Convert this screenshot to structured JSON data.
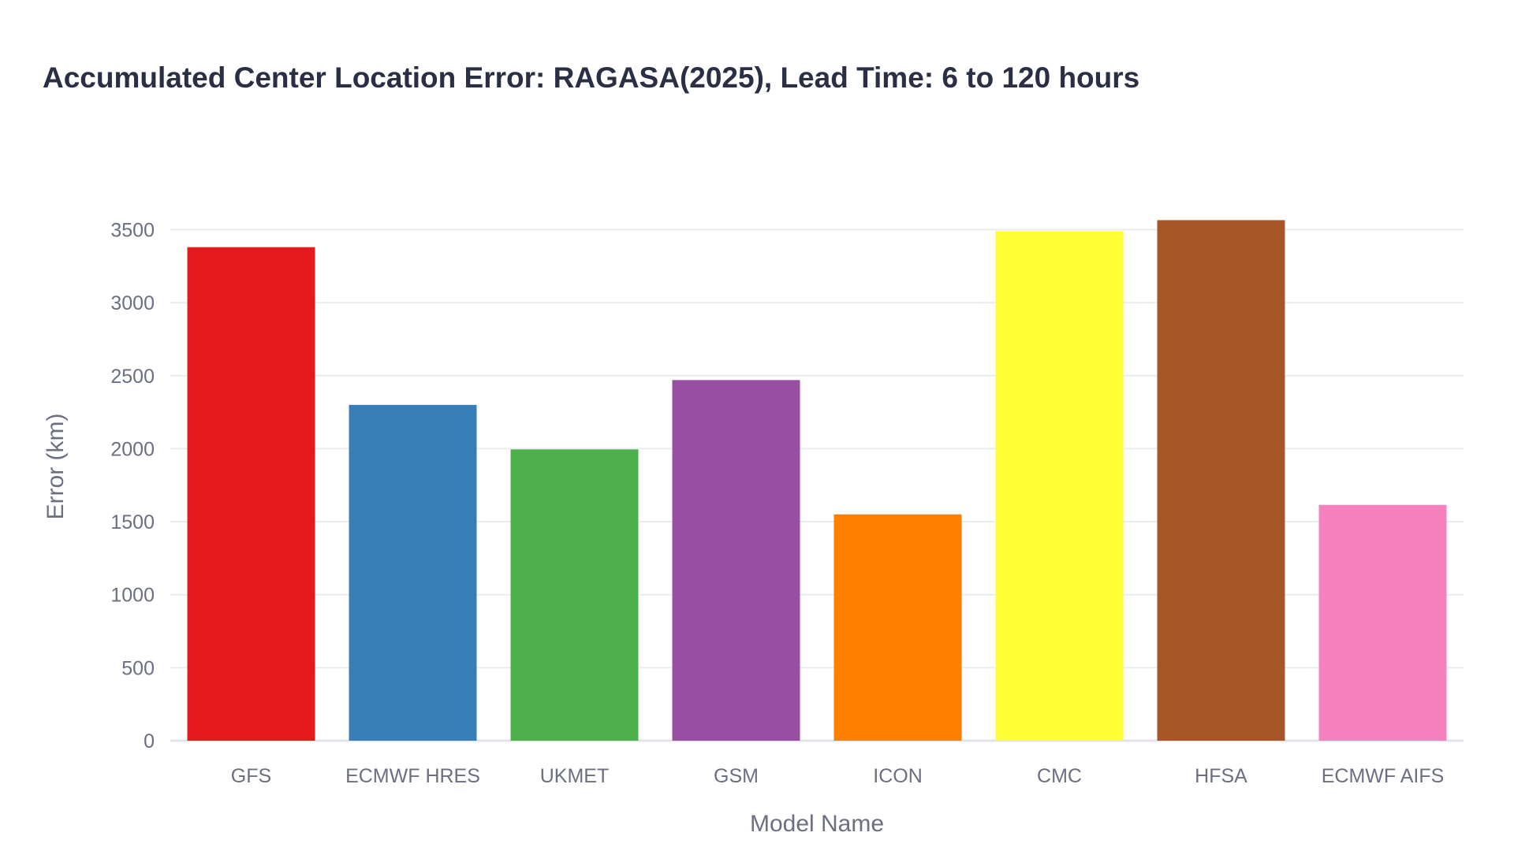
{
  "chart_data": {
    "type": "bar",
    "title": "Accumulated Center Location Error: RAGASA(2025), Lead Time: 6 to 120 hours",
    "xlabel": "Model Name",
    "ylabel": "Error (km)",
    "categories": [
      "GFS",
      "ECMWF HRES",
      "UKMET",
      "GSM",
      "ICON",
      "CMC",
      "HFSA",
      "ECMWF AIFS"
    ],
    "values": [
      3380,
      2300,
      1995,
      2470,
      1550,
      3490,
      3565,
      1615
    ],
    "colors": [
      "#e41a1c",
      "#377eb8",
      "#4daf4a",
      "#984ea3",
      "#ff7f00",
      "#ffff33",
      "#a65628",
      "#f781bf"
    ],
    "ylim": [
      0,
      3600
    ],
    "yticks": [
      0,
      500,
      1000,
      1500,
      2000,
      2500,
      3000,
      3500
    ],
    "grid": true,
    "legend": "none"
  }
}
